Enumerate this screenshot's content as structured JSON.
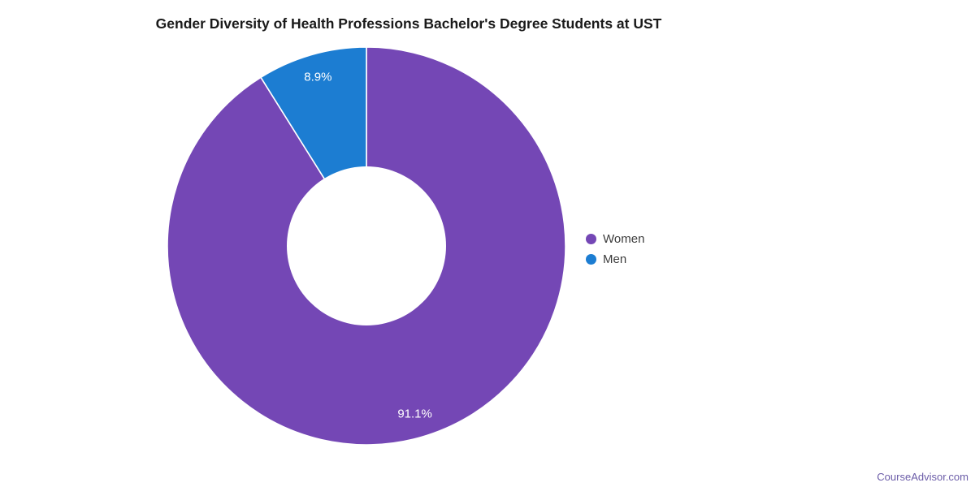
{
  "chart_data": {
    "type": "pie",
    "subtype": "donut",
    "title": "Gender Diversity of Health Professions Bachelor's Degree Students at UST",
    "categories": [
      "Women",
      "Men"
    ],
    "values": [
      91.1,
      8.9
    ],
    "value_labels": [
      "91.1%",
      "8.9%"
    ],
    "colors": [
      "#7447B5",
      "#1C7DD2"
    ],
    "slice_border_color": "#FFFFFF",
    "label_color": "#FFFFFF",
    "start_angle_deg": 0,
    "direction": "clockwise",
    "legend_position": "right",
    "legend": [
      {
        "label": "Women",
        "color": "#7447B5"
      },
      {
        "label": "Men",
        "color": "#1C7DD2"
      }
    ]
  },
  "footer": {
    "brand": "CourseAdvisor.com",
    "color": "#6B5CA8"
  }
}
